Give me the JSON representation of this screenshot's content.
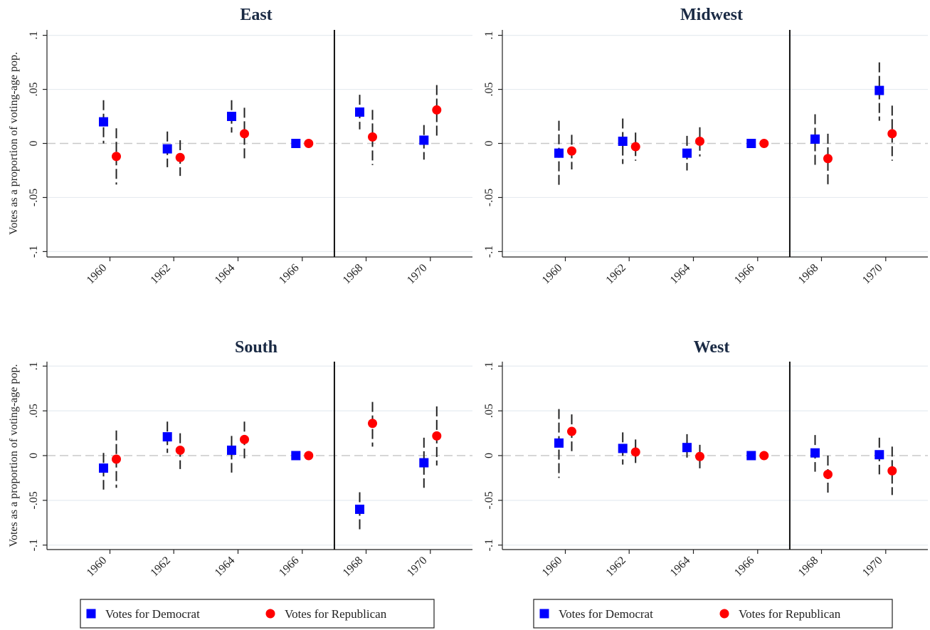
{
  "chart_data": [
    {
      "type": "scatter",
      "title": "East",
      "ylabel": "Votes as a proportion of voting-age pop.",
      "xlabel": "",
      "x_ticks": [
        "1960",
        "1962",
        "1964",
        "1966",
        "1968",
        "1970"
      ],
      "y_ticks": [
        ".1",
        ".05",
        "0",
        "-.05",
        "-.1"
      ],
      "y_tick_values": [
        0.1,
        0.05,
        0,
        -0.05,
        -0.1
      ],
      "ylim": [
        -0.105,
        0.105
      ],
      "event_line_x": 1967,
      "series": [
        {
          "name": "Votes for Democrat",
          "marker": "square",
          "color": "#0000ff",
          "x": [
            1960,
            1962,
            1964,
            1966,
            1968,
            1970
          ],
          "y": [
            0.02,
            -0.005,
            0.025,
            0.0,
            0.029,
            0.003
          ],
          "ci_low": [
            0.0,
            -0.022,
            0.01,
            0.0,
            0.013,
            -0.015
          ],
          "ci_high": [
            0.04,
            0.011,
            0.04,
            0.0,
            0.045,
            0.017
          ]
        },
        {
          "name": "Votes for Republican",
          "marker": "circle",
          "color": "#ff0000",
          "x": [
            1960,
            1962,
            1964,
            1966,
            1968,
            1970
          ],
          "y": [
            -0.012,
            -0.013,
            0.009,
            0.0,
            0.006,
            0.031
          ],
          "ci_low": [
            -0.038,
            -0.03,
            -0.015,
            0.0,
            -0.02,
            0.006
          ],
          "ci_high": [
            0.014,
            0.003,
            0.033,
            0.0,
            0.031,
            0.054
          ]
        }
      ]
    },
    {
      "type": "scatter",
      "title": "Midwest",
      "ylabel": "",
      "xlabel": "",
      "x_ticks": [
        "1960",
        "1962",
        "1964",
        "1966",
        "1968",
        "1970"
      ],
      "y_ticks": [
        ".1",
        ".05",
        "0",
        "-.05",
        "-.1"
      ],
      "y_tick_values": [
        0.1,
        0.05,
        0,
        -0.05,
        -0.1
      ],
      "ylim": [
        -0.105,
        0.105
      ],
      "event_line_x": 1967,
      "series": [
        {
          "name": "Votes for Democrat",
          "marker": "square",
          "color": "#0000ff",
          "x": [
            1960,
            1962,
            1964,
            1966,
            1968,
            1970
          ],
          "y": [
            -0.009,
            0.002,
            -0.009,
            0.0,
            0.004,
            0.049
          ],
          "ci_low": [
            -0.04,
            -0.019,
            -0.025,
            0.0,
            -0.02,
            0.021
          ],
          "ci_high": [
            0.021,
            0.023,
            0.007,
            0.0,
            0.027,
            0.075
          ]
        },
        {
          "name": "Votes for Republican",
          "marker": "circle",
          "color": "#ff0000",
          "x": [
            1960,
            1962,
            1964,
            1966,
            1968,
            1970
          ],
          "y": [
            -0.007,
            -0.003,
            0.002,
            0.0,
            -0.014,
            0.009
          ],
          "ci_low": [
            -0.024,
            -0.016,
            -0.012,
            0.0,
            -0.038,
            -0.016
          ],
          "ci_high": [
            0.008,
            0.01,
            0.015,
            0.0,
            0.009,
            0.035
          ]
        }
      ]
    },
    {
      "type": "scatter",
      "title": "South",
      "ylabel": "Votes as a proportion of voting-age pop.",
      "xlabel": "",
      "x_ticks": [
        "1960",
        "1962",
        "1964",
        "1966",
        "1968",
        "1970"
      ],
      "y_ticks": [
        ".1",
        ".05",
        "0",
        "-.05",
        "-.1"
      ],
      "y_tick_values": [
        0.1,
        0.05,
        0,
        -0.05,
        -0.1
      ],
      "ylim": [
        -0.105,
        0.105
      ],
      "event_line_x": 1967,
      "series": [
        {
          "name": "Votes for Democrat",
          "marker": "square",
          "color": "#0000ff",
          "x": [
            1960,
            1962,
            1964,
            1966,
            1968,
            1970
          ],
          "y": [
            -0.014,
            0.021,
            0.006,
            0.0,
            -0.06,
            -0.008
          ],
          "ci_low": [
            -0.038,
            0.003,
            -0.019,
            0.0,
            -0.084,
            -0.036
          ],
          "ci_high": [
            0.003,
            0.038,
            0.022,
            0.0,
            -0.041,
            0.02
          ]
        },
        {
          "name": "Votes for Republican",
          "marker": "circle",
          "color": "#ff0000",
          "x": [
            1960,
            1962,
            1964,
            1966,
            1968,
            1970
          ],
          "y": [
            -0.004,
            0.006,
            0.018,
            0.0,
            0.036,
            0.022
          ],
          "ci_low": [
            -0.036,
            -0.015,
            -0.003,
            0.0,
            0.01,
            -0.011
          ],
          "ci_high": [
            0.028,
            0.025,
            0.038,
            0.0,
            0.06,
            0.055
          ]
        }
      ]
    },
    {
      "type": "scatter",
      "title": "West",
      "ylabel": "",
      "xlabel": "",
      "x_ticks": [
        "1960",
        "1962",
        "1964",
        "1966",
        "1968",
        "1970"
      ],
      "y_ticks": [
        ".1",
        ".05",
        "0",
        "-.05",
        "-.1"
      ],
      "y_tick_values": [
        0.1,
        0.05,
        0,
        -0.05,
        -0.1
      ],
      "ylim": [
        -0.105,
        0.105
      ],
      "event_line_x": 1967,
      "series": [
        {
          "name": "Votes for Democrat",
          "marker": "square",
          "color": "#0000ff",
          "x": [
            1960,
            1962,
            1964,
            1966,
            1968,
            1970
          ],
          "y": [
            0.014,
            0.008,
            0.009,
            0.0,
            0.003,
            0.001
          ],
          "ci_low": [
            -0.025,
            -0.01,
            -0.004,
            0.0,
            -0.018,
            -0.021
          ],
          "ci_high": [
            0.052,
            0.026,
            0.024,
            0.0,
            0.023,
            0.02
          ]
        },
        {
          "name": "Votes for Republican",
          "marker": "circle",
          "color": "#ff0000",
          "x": [
            1960,
            1962,
            1964,
            1966,
            1968,
            1970
          ],
          "y": [
            0.027,
            0.004,
            -0.001,
            0.0,
            -0.021,
            -0.017
          ],
          "ci_low": [
            0.005,
            -0.009,
            -0.015,
            0.0,
            -0.045,
            -0.044
          ],
          "ci_high": [
            0.046,
            0.018,
            0.012,
            0.0,
            0.0,
            0.01
          ]
        }
      ]
    }
  ],
  "legends": [
    {
      "items": [
        {
          "label": "Votes for Democrat",
          "marker": "square",
          "color": "#0000ff"
        },
        {
          "label": "Votes for Republican",
          "marker": "circle",
          "color": "#ff0000"
        }
      ]
    },
    {
      "items": [
        {
          "label": "Votes for Democrat",
          "marker": "square",
          "color": "#0000ff"
        },
        {
          "label": "Votes for Republican",
          "marker": "circle",
          "color": "#ff0000"
        }
      ]
    }
  ],
  "colors": {
    "democrat": "#0000ff",
    "republican": "#ff0000",
    "title": "#1a2a44",
    "zero_line": "#c8c8c8",
    "grid": "#e6ebf0"
  }
}
